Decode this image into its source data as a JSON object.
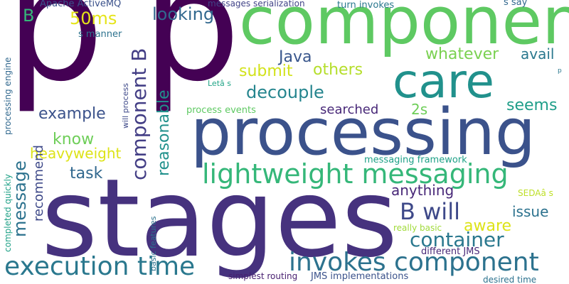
{
  "words": [
    {
      "key": "p1",
      "text": "p",
      "color": "#440154",
      "rot": false
    },
    {
      "key": "p2",
      "text": "p",
      "color": "#440154",
      "rot": false
    },
    {
      "key": "stages",
      "text": "stages",
      "color": "#46327e",
      "rot": false
    },
    {
      "key": "component",
      "text": "component",
      "color": "#5ec962",
      "rot": false
    },
    {
      "key": "processing",
      "text": "processing",
      "color": "#3b528b",
      "rot": false
    },
    {
      "key": "care",
      "text": "care",
      "color": "#21918c",
      "rot": false
    },
    {
      "key": "lightweight_messaging",
      "text": "lightweight messaging",
      "color": "#35b779",
      "rot": false
    },
    {
      "key": "execution_time",
      "text": "execution time",
      "color": "#2a788e",
      "rot": false
    },
    {
      "key": "invokes_component",
      "text": "invokes component",
      "color": "#2c728e",
      "rot": false
    },
    {
      "key": "component_b_v",
      "text": "component B",
      "color": "#433e85",
      "rot": true
    },
    {
      "key": "b_will",
      "text": "B will",
      "color": "#3e4989",
      "rot": false
    },
    {
      "key": "container",
      "text": "container",
      "color": "#2a788e",
      "rot": false
    },
    {
      "key": "decouple",
      "text": "decouple",
      "color": "#25858e",
      "rot": false
    },
    {
      "key": "looking",
      "text": "looking",
      "color": "#31688e",
      "rot": false
    },
    {
      "key": "whatever",
      "text": "whatever",
      "color": "#7ad151",
      "rot": false
    },
    {
      "key": "submit",
      "text": "submit",
      "color": "#d2e21b",
      "rot": false
    },
    {
      "key": "others",
      "text": "others",
      "color": "#b5de2b",
      "rot": false
    },
    {
      "key": "example",
      "text": "example",
      "color": "#3b528b",
      "rot": false
    },
    {
      "key": "seems",
      "text": "seems",
      "color": "#1f9e89",
      "rot": false
    },
    {
      "key": "know",
      "text": "know",
      "color": "#6ece58",
      "rot": false
    },
    {
      "key": "java",
      "text": "Java",
      "color": "#39568c",
      "rot": false
    },
    {
      "key": "avail",
      "text": "avail",
      "color": "#2a788e",
      "rot": false
    },
    {
      "key": "50ms",
      "text": "50ms",
      "color": "#e5e419",
      "rot": false
    },
    {
      "key": "b_top",
      "text": "B",
      "color": "#35b779",
      "rot": false
    },
    {
      "key": "task",
      "text": "task",
      "color": "#31688e",
      "rot": false
    },
    {
      "key": "heavyweight",
      "text": "heavyweight",
      "color": "#dde318",
      "rot": false
    },
    {
      "key": "anything",
      "text": "anything",
      "color": "#482878",
      "rot": false
    },
    {
      "key": "aware",
      "text": "aware",
      "color": "#dde318",
      "rot": false
    },
    {
      "key": "issue",
      "text": "issue",
      "color": "#2c728e",
      "rot": false
    },
    {
      "key": "2s",
      "text": "2s",
      "color": "#6ece58",
      "rot": false
    },
    {
      "key": "searched",
      "text": "searched",
      "color": "#482878",
      "rot": false
    },
    {
      "key": "message_v",
      "text": "message",
      "color": "#2c728e",
      "rot": true
    },
    {
      "key": "reasonable_v",
      "text": "reasonable",
      "color": "#21918c",
      "rot": true
    },
    {
      "key": "recommend_v",
      "text": "recommend",
      "color": "#3e4989",
      "rot": true
    },
    {
      "key": "apache_activemq",
      "text": "Apache ActiveMQ",
      "color": "#3b528b",
      "rot": false
    },
    {
      "key": "messages_serialization",
      "text": "messages serialization",
      "color": "#414487",
      "rot": false
    },
    {
      "key": "turn_invokes",
      "text": "turn invokes",
      "color": "#2a788e",
      "rot": false
    },
    {
      "key": "s_say",
      "text": "s say",
      "color": "#31688e",
      "rot": false
    },
    {
      "key": "s_manner",
      "text": "s manner",
      "color": "#2c728e",
      "rot": false
    },
    {
      "key": "process_events",
      "text": "process events",
      "color": "#5ec962",
      "rot": false
    },
    {
      "key": "lets",
      "text": "Letâ s",
      "color": "#20a486",
      "rot": false
    },
    {
      "key": "messaging_framework",
      "text": "messaging framework",
      "color": "#1fa187",
      "rot": false
    },
    {
      "key": "sedaa_s",
      "text": "SEDAâ s",
      "color": "#bddf26",
      "rot": false
    },
    {
      "key": "really_basic",
      "text": "really basic",
      "color": "#a0da39",
      "rot": false
    },
    {
      "key": "different_jms",
      "text": "different JMS",
      "color": "#482878",
      "rot": false
    },
    {
      "key": "jms_implementations",
      "text": "JMS implementations",
      "color": "#3b528b",
      "rot": false
    },
    {
      "key": "simplest_routing",
      "text": "simplest routing",
      "color": "#481f70",
      "rot": false
    },
    {
      "key": "desired_time",
      "text": "desired time",
      "color": "#2c728e",
      "rot": false
    },
    {
      "key": "p_small",
      "text": "p",
      "color": "#2a788e",
      "rot": false
    },
    {
      "key": "processing_engine_v",
      "text": "processing engine",
      "color": "#31688e",
      "rot": true
    },
    {
      "key": "completed_quickly_v",
      "text": "completed quickly",
      "color": "#1fa187",
      "rot": true
    },
    {
      "key": "will_process_v",
      "text": "will process",
      "color": "#3e4989",
      "rot": true
    },
    {
      "key": "basic_features_v",
      "text": "basic features",
      "color": "#2c728e",
      "rot": true
    }
  ]
}
